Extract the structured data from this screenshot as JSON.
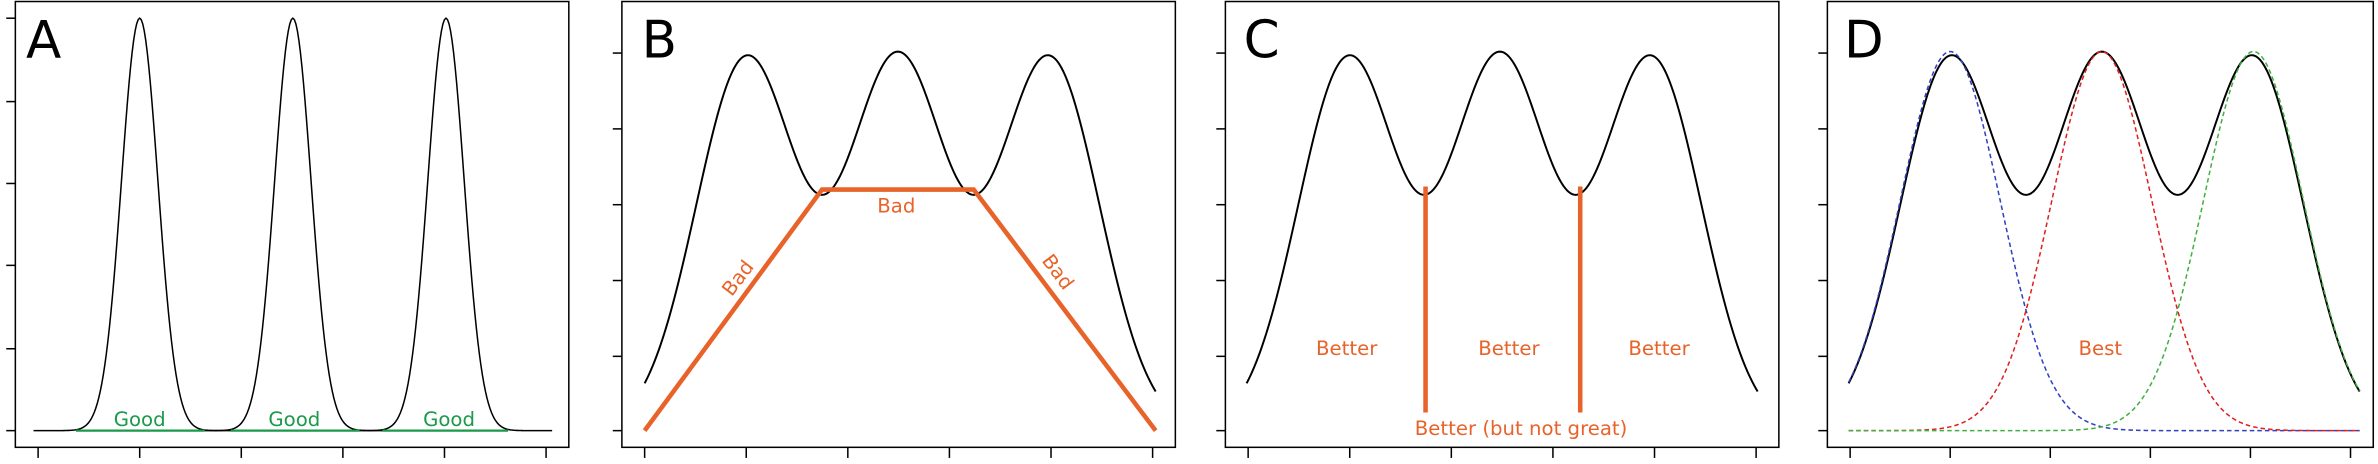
{
  "panels": [
    {
      "letter": "A",
      "labels": [
        "Good",
        "Good",
        "Good"
      ]
    },
    {
      "letter": "B",
      "labels": [
        "Bad",
        "Bad",
        "Bad"
      ]
    },
    {
      "letter": "C",
      "labels": [
        "Better",
        "Better",
        "Better",
        "Better (but not great)"
      ]
    },
    {
      "letter": "D",
      "labels": [
        "Best"
      ]
    }
  ]
}
